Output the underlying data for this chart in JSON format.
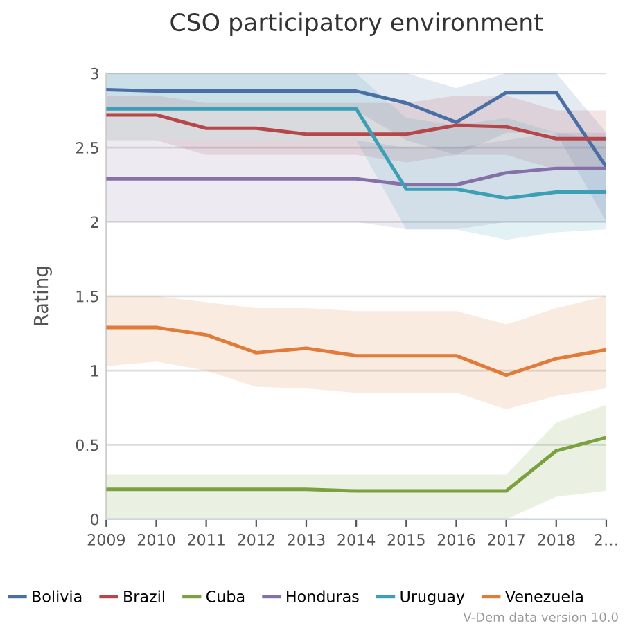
{
  "chart_data": {
    "type": "line",
    "title": "CSO participatory environment",
    "ylabel": "Rating",
    "x": [
      2009,
      2010,
      2011,
      2012,
      2013,
      2014,
      2015,
      2016,
      2017,
      2018,
      2019
    ],
    "xlim": [
      2009,
      2019
    ],
    "xticks": [
      2009,
      2010,
      2011,
      2012,
      2013,
      2014,
      2015,
      2016,
      2017,
      2018,
      {
        "value": 2019,
        "label": "2…"
      }
    ],
    "ylim": [
      0,
      3
    ],
    "yticks": [
      0,
      0.5,
      1,
      1.5,
      2,
      2.5,
      3
    ],
    "grid": "y",
    "legend": "bottom",
    "marker": "none",
    "line_style": "solid",
    "series": [
      {
        "name": "Bolivia",
        "color": "#4a6fa5",
        "values": [
          2.89,
          2.88,
          2.88,
          2.88,
          2.88,
          2.88,
          2.8,
          2.67,
          2.87,
          2.87,
          2.37
        ],
        "lower": [
          2.75,
          2.75,
          2.75,
          2.75,
          2.75,
          2.75,
          2.55,
          2.45,
          2.6,
          2.6,
          2.0
        ],
        "upper": [
          3.0,
          3.0,
          3.0,
          3.0,
          3.0,
          3.0,
          3.0,
          2.9,
          3.0,
          3.0,
          2.6
        ]
      },
      {
        "name": "Brazil",
        "color": "#b5474b",
        "values": [
          2.72,
          2.72,
          2.63,
          2.63,
          2.59,
          2.59,
          2.59,
          2.65,
          2.64,
          2.56,
          2.56
        ],
        "lower": [
          2.55,
          2.55,
          2.45,
          2.45,
          2.45,
          2.45,
          2.4,
          2.45,
          2.45,
          2.35,
          2.35
        ],
        "upper": [
          2.85,
          2.85,
          2.8,
          2.8,
          2.8,
          2.8,
          2.8,
          2.85,
          2.85,
          2.75,
          2.75
        ]
      },
      {
        "name": "Cuba",
        "color": "#7aa03f",
        "values": [
          0.2,
          0.2,
          0.2,
          0.2,
          0.2,
          0.19,
          0.19,
          0.19,
          0.19,
          0.46,
          0.55
        ],
        "lower": [
          0.0,
          0.0,
          0.0,
          0.0,
          0.0,
          0.0,
          0.0,
          0.0,
          0.0,
          0.15,
          0.19
        ],
        "upper": [
          0.3,
          0.3,
          0.3,
          0.3,
          0.3,
          0.3,
          0.3,
          0.3,
          0.3,
          0.65,
          0.77
        ]
      },
      {
        "name": "Honduras",
        "color": "#8570a8",
        "values": [
          2.29,
          2.29,
          2.29,
          2.29,
          2.29,
          2.29,
          2.25,
          2.25,
          2.33,
          2.36,
          2.36
        ],
        "lower": [
          2.0,
          2.0,
          2.0,
          2.0,
          2.0,
          2.0,
          1.95,
          1.95,
          2.0,
          2.0,
          2.0
        ],
        "upper": [
          2.55,
          2.55,
          2.55,
          2.55,
          2.55,
          2.55,
          2.5,
          2.5,
          2.55,
          2.6,
          2.6
        ]
      },
      {
        "name": "Uruguay",
        "color": "#3b9fb5",
        "values": [
          2.76,
          2.76,
          2.76,
          2.76,
          2.76,
          2.76,
          2.22,
          2.22,
          2.16,
          2.2,
          2.2
        ],
        "lower": [
          2.55,
          2.55,
          2.55,
          2.55,
          2.55,
          2.55,
          1.95,
          1.95,
          1.88,
          1.93,
          1.95
        ],
        "upper": [
          3.0,
          3.0,
          3.0,
          3.0,
          3.0,
          3.0,
          2.7,
          2.65,
          2.7,
          2.6,
          2.55
        ]
      },
      {
        "name": "Venezuela",
        "color": "#e07b39",
        "values": [
          1.29,
          1.29,
          1.24,
          1.12,
          1.15,
          1.1,
          1.1,
          1.1,
          0.97,
          1.08,
          1.14
        ],
        "lower": [
          1.03,
          1.06,
          1.0,
          0.89,
          0.88,
          0.85,
          0.85,
          0.85,
          0.74,
          0.83,
          0.88
        ],
        "upper": [
          1.5,
          1.5,
          1.46,
          1.42,
          1.42,
          1.4,
          1.4,
          1.4,
          1.31,
          1.42,
          1.5
        ]
      }
    ],
    "annotations": [
      "V-Dem data version 10.0"
    ]
  }
}
